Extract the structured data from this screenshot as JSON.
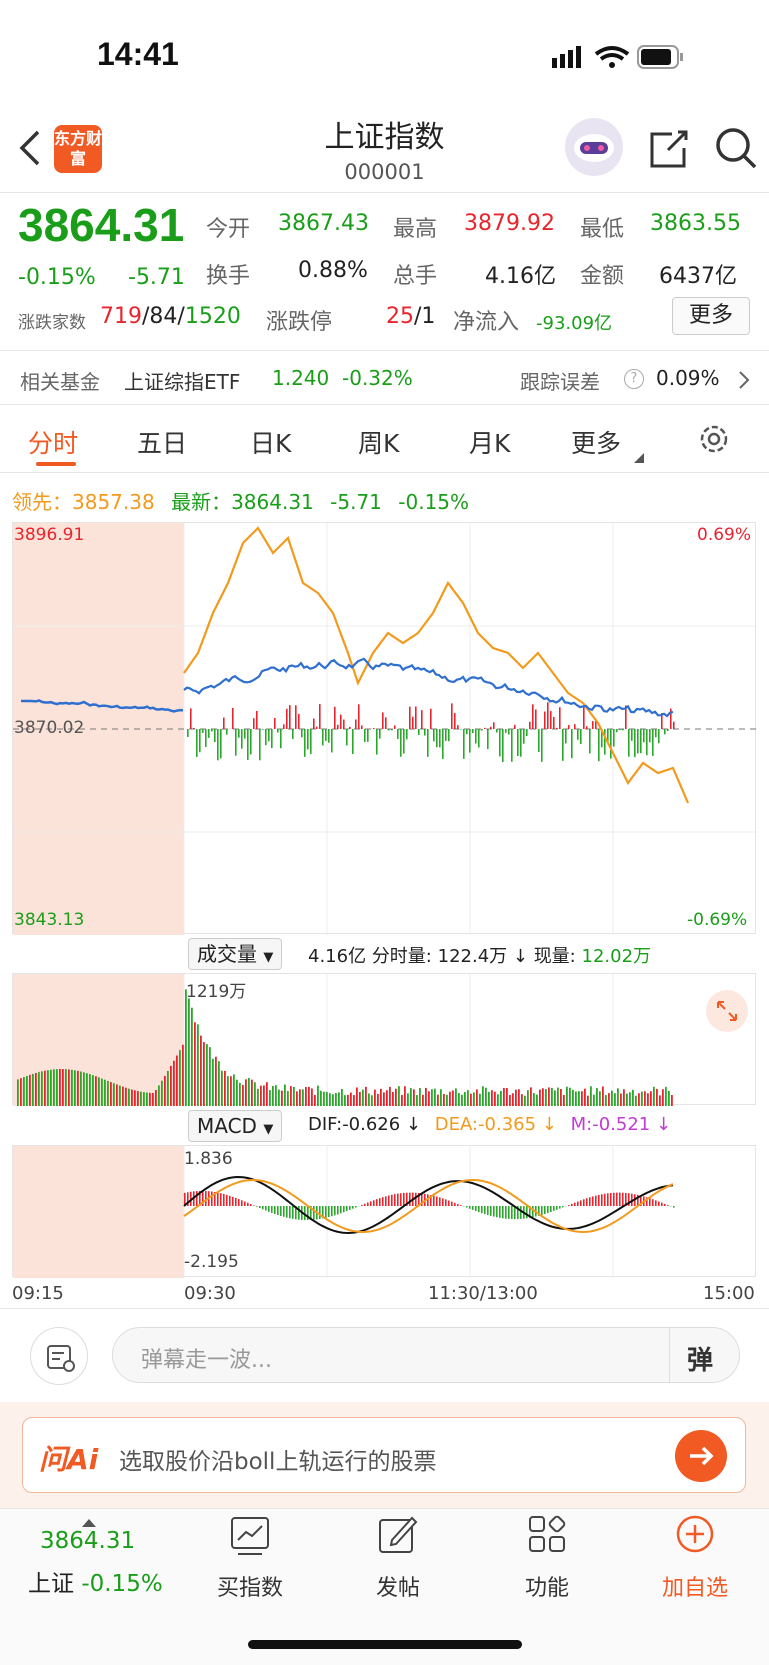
{
  "status": {
    "time": "14:41"
  },
  "header": {
    "title": "上证指数",
    "code": "000001",
    "logo": "东方财富"
  },
  "quote": {
    "price": "3864.31",
    "change_pct": "-0.15%",
    "change": "-5.71",
    "open_label": "今开",
    "open": "3867.43",
    "high_label": "最高",
    "high": "3879.92",
    "low_label": "最低",
    "low": "3863.55",
    "turnover_label": "换手",
    "turnover": "0.88%",
    "vol_label": "总手",
    "vol": "4.16亿",
    "amount_label": "金额",
    "amount": "6437亿",
    "breadth_label": "涨跌家数",
    "breadth_up": "719",
    "breadth_flat": "84",
    "breadth_down": "1520",
    "limit_label": "涨跌停",
    "limit_up": "25",
    "limit_down": "1",
    "netflow_label": "净流入",
    "netflow": "-93.09亿",
    "more": "更多"
  },
  "fund": {
    "label": "相关基金",
    "name": "上证综指ETF",
    "price": "1.240",
    "pct": "-0.32%",
    "track_label": "跟踪误差",
    "track": "0.09%"
  },
  "tabs": [
    "分时",
    "五日",
    "日K",
    "周K",
    "月K",
    "更多"
  ],
  "chart": {
    "lead_label": "领先：",
    "lead": "3857.38",
    "latest_label": "最新：",
    "latest": "3864.31",
    "latest_chg": "-5.71",
    "latest_pct": "-0.15%",
    "ymax": "3896.91",
    "ymin": "3843.13",
    "pct_max": "0.69%",
    "pct_min": "-0.69%",
    "ref": "3870.02"
  },
  "volume": {
    "selector": "成交量",
    "total": "4.16亿",
    "tick_label": "分时量:",
    "tick": "122.4万",
    "now_label": "现量:",
    "now": "12.02万",
    "max": "1219万"
  },
  "macd": {
    "selector": "MACD",
    "dif": "DIF:-0.626 ↓",
    "dea": "DEA:-0.365 ↓",
    "m": "M:-0.521 ↓",
    "max": "1.836",
    "min": "-2.195"
  },
  "times": [
    "09:15",
    "09:30",
    "11:30/13:00",
    "15:00"
  ],
  "danmu": {
    "placeholder": "弹幕走一波...",
    "btn": "弹"
  },
  "ai": {
    "logo": "问Ai",
    "text": "选取股价沿boll上轨运行的股票"
  },
  "nav": {
    "price": "3864.31",
    "name": "上证",
    "pct": "-0.15%",
    "items": [
      "买指数",
      "发帖",
      "功能",
      "加自选"
    ]
  }
}
